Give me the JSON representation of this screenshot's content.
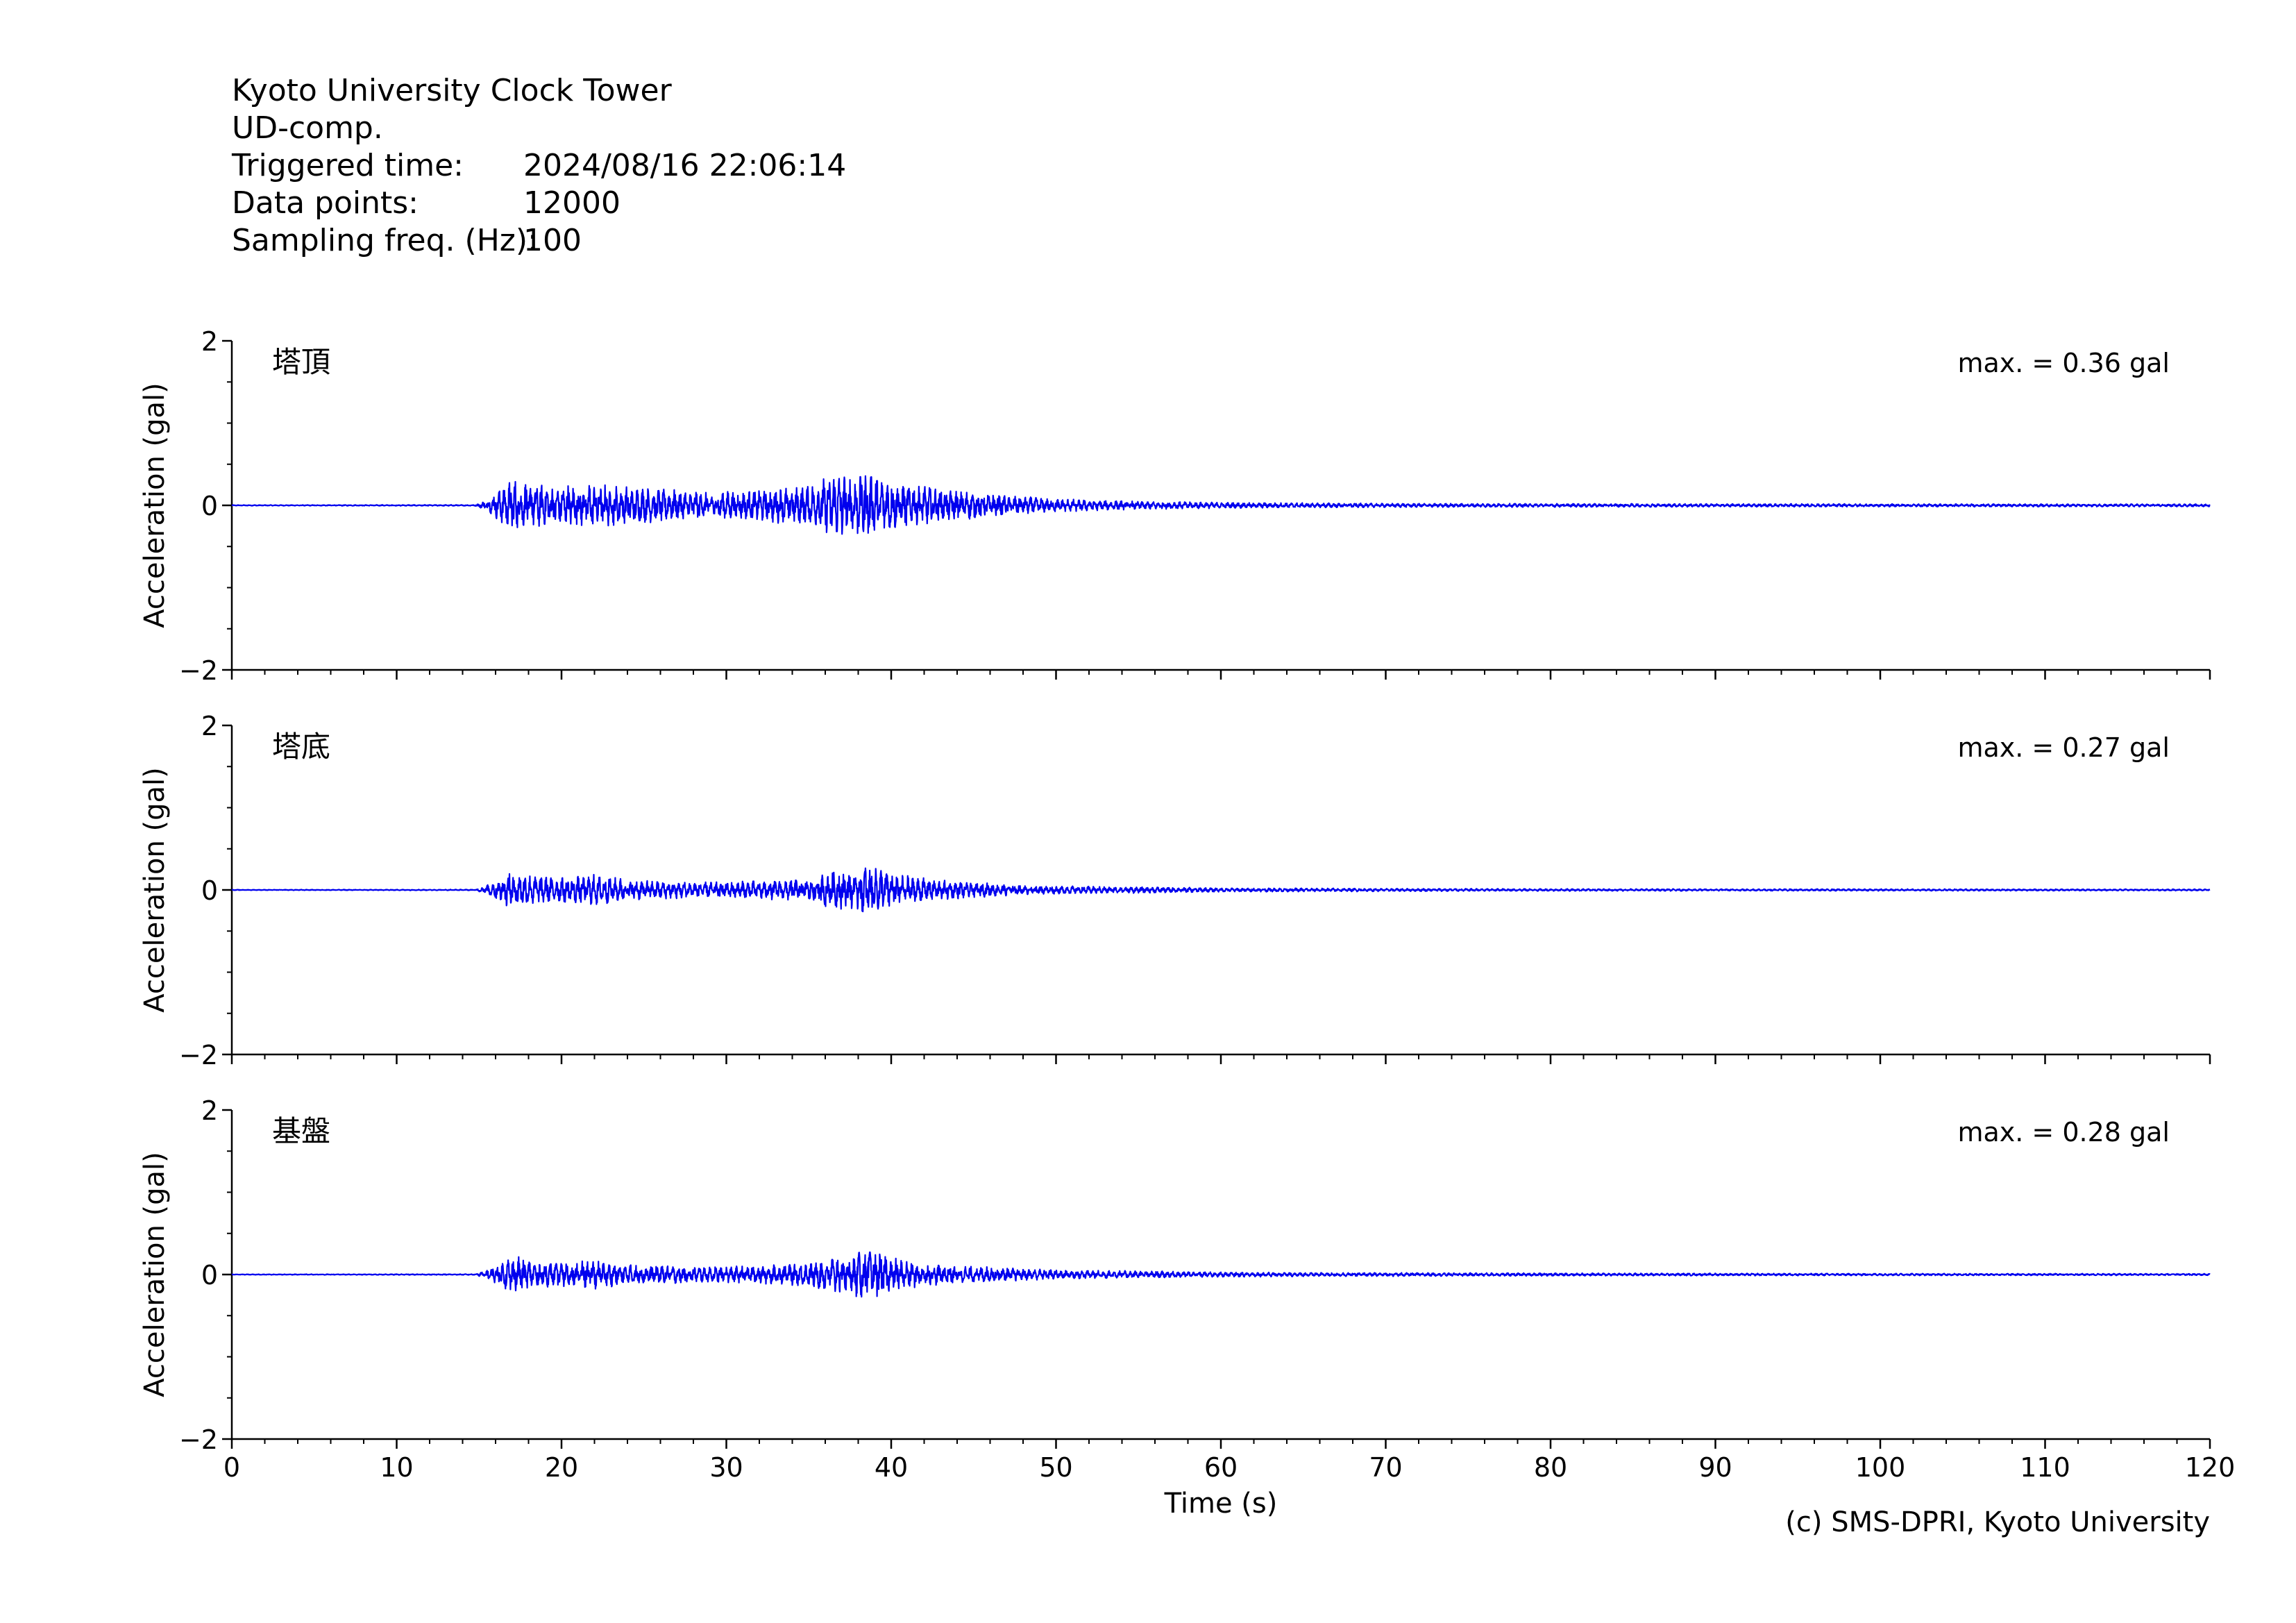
{
  "header": {
    "site": "Kyoto University Clock Tower",
    "component": "UD-comp.",
    "triggered_label": "Triggered time:",
    "triggered_value": "2024/08/16 22:06:14",
    "points_label": "Data points:",
    "points_value": "12000",
    "freq_label": "Sampling freq. (Hz):",
    "freq_value": "100"
  },
  "copyright": "(c) SMS-DPRI, Kyoto University",
  "colors": {
    "trace": "#0000ee",
    "axis": "#000000"
  },
  "chart_data": [
    {
      "type": "line",
      "title": "塔頂",
      "annotation": "max. = 0.36 gal",
      "ylabel": "Acceleration (gal)",
      "xlabel": "",
      "xlim": [
        0,
        120
      ],
      "ylim": [
        -2,
        2
      ],
      "yticks": [
        -2,
        0,
        2
      ],
      "ytick_labels": [
        "−2",
        "0",
        "2"
      ],
      "peak": 0.36,
      "envelope": {
        "x": [
          0,
          14.8,
          15.5,
          16.5,
          17.0,
          18.0,
          19.5,
          21.0,
          22.0,
          23.5,
          25.0,
          27.0,
          29.0,
          31.0,
          33.0,
          35.0,
          36.0,
          36.8,
          37.5,
          38.5,
          39.5,
          40.5,
          42.0,
          44.0,
          46.0,
          48.0,
          50.0,
          53.0,
          56.0,
          60.0,
          65.0,
          70.0,
          80.0,
          90.0,
          100.0,
          110.0,
          120.0
        ],
        "amp": [
          0.004,
          0.006,
          0.06,
          0.2,
          0.28,
          0.24,
          0.2,
          0.22,
          0.24,
          0.2,
          0.18,
          0.16,
          0.14,
          0.15,
          0.18,
          0.2,
          0.3,
          0.34,
          0.3,
          0.36,
          0.3,
          0.24,
          0.2,
          0.16,
          0.12,
          0.09,
          0.07,
          0.05,
          0.04,
          0.03,
          0.025,
          0.02,
          0.018,
          0.016,
          0.015,
          0.014,
          0.013
        ]
      }
    },
    {
      "type": "line",
      "title": "塔底",
      "annotation": "max. = 0.27 gal",
      "ylabel": "Acceleration (gal)",
      "xlabel": "",
      "xlim": [
        0,
        120
      ],
      "ylim": [
        -2,
        2
      ],
      "yticks": [
        -2,
        0,
        2
      ],
      "ytick_labels": [
        "−2",
        "0",
        "2"
      ],
      "peak": 0.27,
      "envelope": {
        "x": [
          0,
          14.8,
          15.5,
          16.5,
          17.0,
          18.0,
          19.5,
          21.0,
          22.0,
          23.5,
          25.0,
          27.0,
          29.0,
          31.0,
          33.0,
          35.0,
          36.0,
          36.8,
          37.5,
          38.5,
          39.5,
          40.5,
          42.0,
          44.0,
          46.0,
          48.0,
          50.0,
          53.0,
          56.0,
          60.0,
          65.0,
          70.0,
          80.0,
          90.0,
          100.0,
          110.0,
          120.0
        ],
        "amp": [
          0.003,
          0.005,
          0.05,
          0.15,
          0.2,
          0.16,
          0.13,
          0.14,
          0.16,
          0.12,
          0.1,
          0.09,
          0.08,
          0.09,
          0.1,
          0.12,
          0.18,
          0.22,
          0.2,
          0.27,
          0.22,
          0.16,
          0.12,
          0.09,
          0.07,
          0.05,
          0.04,
          0.035,
          0.03,
          0.02,
          0.018,
          0.015,
          0.012,
          0.01,
          0.01,
          0.009,
          0.008
        ]
      }
    },
    {
      "type": "line",
      "title": "基盤",
      "annotation": "max. = 0.28 gal",
      "ylabel": "Acceleration (gal)",
      "xlabel": "Time (s)",
      "xlim": [
        0,
        120
      ],
      "ylim": [
        -2,
        2
      ],
      "yticks": [
        -2,
        0,
        2
      ],
      "ytick_labels": [
        "−2",
        "0",
        "2"
      ],
      "xticks": [
        0,
        10,
        20,
        30,
        40,
        50,
        60,
        70,
        80,
        90,
        100,
        110,
        120
      ],
      "peak": 0.28,
      "envelope": {
        "x": [
          0,
          14.8,
          15.5,
          16.5,
          17.0,
          18.0,
          19.5,
          21.0,
          22.0,
          23.5,
          25.0,
          27.0,
          29.0,
          31.0,
          33.0,
          35.0,
          36.0,
          36.8,
          37.5,
          38.5,
          39.5,
          40.5,
          42.0,
          44.0,
          46.0,
          48.0,
          50.0,
          53.0,
          56.0,
          60.0,
          65.0,
          70.0,
          80.0,
          90.0,
          100.0,
          110.0,
          120.0
        ],
        "amp": [
          0.003,
          0.005,
          0.05,
          0.14,
          0.2,
          0.15,
          0.12,
          0.13,
          0.15,
          0.11,
          0.1,
          0.09,
          0.08,
          0.09,
          0.1,
          0.12,
          0.17,
          0.22,
          0.2,
          0.28,
          0.22,
          0.16,
          0.12,
          0.09,
          0.08,
          0.06,
          0.05,
          0.04,
          0.035,
          0.025,
          0.02,
          0.018,
          0.015,
          0.012,
          0.011,
          0.01,
          0.009
        ]
      }
    }
  ]
}
